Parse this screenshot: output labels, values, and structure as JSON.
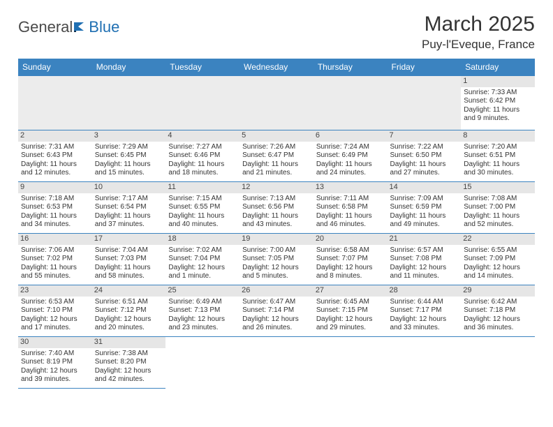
{
  "brand": {
    "part1": "General",
    "part2": "Blue"
  },
  "title": "March 2025",
  "location": "Puy-l'Eveque, France",
  "colors": {
    "header_bg": "#3b83c0",
    "header_text": "#ffffff",
    "border": "#3b83c0",
    "daynum_bg": "#e6e6e6",
    "blank_bg": "#ececec",
    "text": "#333333",
    "brand_gray": "#4a4a4a",
    "brand_blue": "#1f6fb2"
  },
  "weekdays": [
    "Sunday",
    "Monday",
    "Tuesday",
    "Wednesday",
    "Thursday",
    "Friday",
    "Saturday"
  ],
  "weeks": [
    [
      null,
      null,
      null,
      null,
      null,
      null,
      {
        "d": "1",
        "sr": "Sunrise: 7:33 AM",
        "ss": "Sunset: 6:42 PM",
        "dl1": "Daylight: 11 hours",
        "dl2": "and 9 minutes."
      }
    ],
    [
      {
        "d": "2",
        "sr": "Sunrise: 7:31 AM",
        "ss": "Sunset: 6:43 PM",
        "dl1": "Daylight: 11 hours",
        "dl2": "and 12 minutes."
      },
      {
        "d": "3",
        "sr": "Sunrise: 7:29 AM",
        "ss": "Sunset: 6:45 PM",
        "dl1": "Daylight: 11 hours",
        "dl2": "and 15 minutes."
      },
      {
        "d": "4",
        "sr": "Sunrise: 7:27 AM",
        "ss": "Sunset: 6:46 PM",
        "dl1": "Daylight: 11 hours",
        "dl2": "and 18 minutes."
      },
      {
        "d": "5",
        "sr": "Sunrise: 7:26 AM",
        "ss": "Sunset: 6:47 PM",
        "dl1": "Daylight: 11 hours",
        "dl2": "and 21 minutes."
      },
      {
        "d": "6",
        "sr": "Sunrise: 7:24 AM",
        "ss": "Sunset: 6:49 PM",
        "dl1": "Daylight: 11 hours",
        "dl2": "and 24 minutes."
      },
      {
        "d": "7",
        "sr": "Sunrise: 7:22 AM",
        "ss": "Sunset: 6:50 PM",
        "dl1": "Daylight: 11 hours",
        "dl2": "and 27 minutes."
      },
      {
        "d": "8",
        "sr": "Sunrise: 7:20 AM",
        "ss": "Sunset: 6:51 PM",
        "dl1": "Daylight: 11 hours",
        "dl2": "and 30 minutes."
      }
    ],
    [
      {
        "d": "9",
        "sr": "Sunrise: 7:18 AM",
        "ss": "Sunset: 6:53 PM",
        "dl1": "Daylight: 11 hours",
        "dl2": "and 34 minutes."
      },
      {
        "d": "10",
        "sr": "Sunrise: 7:17 AM",
        "ss": "Sunset: 6:54 PM",
        "dl1": "Daylight: 11 hours",
        "dl2": "and 37 minutes."
      },
      {
        "d": "11",
        "sr": "Sunrise: 7:15 AM",
        "ss": "Sunset: 6:55 PM",
        "dl1": "Daylight: 11 hours",
        "dl2": "and 40 minutes."
      },
      {
        "d": "12",
        "sr": "Sunrise: 7:13 AM",
        "ss": "Sunset: 6:56 PM",
        "dl1": "Daylight: 11 hours",
        "dl2": "and 43 minutes."
      },
      {
        "d": "13",
        "sr": "Sunrise: 7:11 AM",
        "ss": "Sunset: 6:58 PM",
        "dl1": "Daylight: 11 hours",
        "dl2": "and 46 minutes."
      },
      {
        "d": "14",
        "sr": "Sunrise: 7:09 AM",
        "ss": "Sunset: 6:59 PM",
        "dl1": "Daylight: 11 hours",
        "dl2": "and 49 minutes."
      },
      {
        "d": "15",
        "sr": "Sunrise: 7:08 AM",
        "ss": "Sunset: 7:00 PM",
        "dl1": "Daylight: 11 hours",
        "dl2": "and 52 minutes."
      }
    ],
    [
      {
        "d": "16",
        "sr": "Sunrise: 7:06 AM",
        "ss": "Sunset: 7:02 PM",
        "dl1": "Daylight: 11 hours",
        "dl2": "and 55 minutes."
      },
      {
        "d": "17",
        "sr": "Sunrise: 7:04 AM",
        "ss": "Sunset: 7:03 PM",
        "dl1": "Daylight: 11 hours",
        "dl2": "and 58 minutes."
      },
      {
        "d": "18",
        "sr": "Sunrise: 7:02 AM",
        "ss": "Sunset: 7:04 PM",
        "dl1": "Daylight: 12 hours",
        "dl2": "and 1 minute."
      },
      {
        "d": "19",
        "sr": "Sunrise: 7:00 AM",
        "ss": "Sunset: 7:05 PM",
        "dl1": "Daylight: 12 hours",
        "dl2": "and 5 minutes."
      },
      {
        "d": "20",
        "sr": "Sunrise: 6:58 AM",
        "ss": "Sunset: 7:07 PM",
        "dl1": "Daylight: 12 hours",
        "dl2": "and 8 minutes."
      },
      {
        "d": "21",
        "sr": "Sunrise: 6:57 AM",
        "ss": "Sunset: 7:08 PM",
        "dl1": "Daylight: 12 hours",
        "dl2": "and 11 minutes."
      },
      {
        "d": "22",
        "sr": "Sunrise: 6:55 AM",
        "ss": "Sunset: 7:09 PM",
        "dl1": "Daylight: 12 hours",
        "dl2": "and 14 minutes."
      }
    ],
    [
      {
        "d": "23",
        "sr": "Sunrise: 6:53 AM",
        "ss": "Sunset: 7:10 PM",
        "dl1": "Daylight: 12 hours",
        "dl2": "and 17 minutes."
      },
      {
        "d": "24",
        "sr": "Sunrise: 6:51 AM",
        "ss": "Sunset: 7:12 PM",
        "dl1": "Daylight: 12 hours",
        "dl2": "and 20 minutes."
      },
      {
        "d": "25",
        "sr": "Sunrise: 6:49 AM",
        "ss": "Sunset: 7:13 PM",
        "dl1": "Daylight: 12 hours",
        "dl2": "and 23 minutes."
      },
      {
        "d": "26",
        "sr": "Sunrise: 6:47 AM",
        "ss": "Sunset: 7:14 PM",
        "dl1": "Daylight: 12 hours",
        "dl2": "and 26 minutes."
      },
      {
        "d": "27",
        "sr": "Sunrise: 6:45 AM",
        "ss": "Sunset: 7:15 PM",
        "dl1": "Daylight: 12 hours",
        "dl2": "and 29 minutes."
      },
      {
        "d": "28",
        "sr": "Sunrise: 6:44 AM",
        "ss": "Sunset: 7:17 PM",
        "dl1": "Daylight: 12 hours",
        "dl2": "and 33 minutes."
      },
      {
        "d": "29",
        "sr": "Sunrise: 6:42 AM",
        "ss": "Sunset: 7:18 PM",
        "dl1": "Daylight: 12 hours",
        "dl2": "and 36 minutes."
      }
    ],
    [
      {
        "d": "30",
        "sr": "Sunrise: 7:40 AM",
        "ss": "Sunset: 8:19 PM",
        "dl1": "Daylight: 12 hours",
        "dl2": "and 39 minutes."
      },
      {
        "d": "31",
        "sr": "Sunrise: 7:38 AM",
        "ss": "Sunset: 8:20 PM",
        "dl1": "Daylight: 12 hours",
        "dl2": "and 42 minutes."
      },
      null,
      null,
      null,
      null,
      null
    ]
  ]
}
